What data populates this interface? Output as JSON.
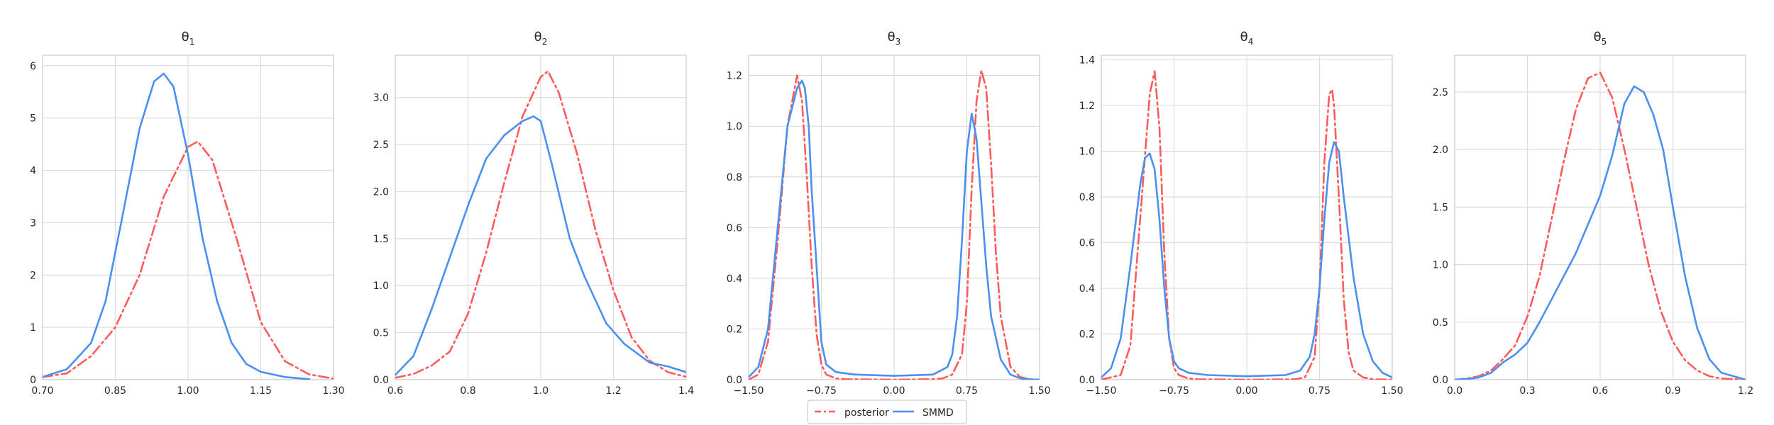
{
  "legend": {
    "placement": "bottom-center",
    "entries": [
      {
        "name": "posterior",
        "color": "#ff5b5b",
        "style": "dashdot"
      },
      {
        "name": "SMMD",
        "color": "#4a90f0",
        "style": "solid"
      }
    ]
  },
  "chart_data": [
    {
      "type": "line",
      "title": "θ1",
      "title_base": "θ",
      "title_sub": "1",
      "xlim": [
        0.7,
        1.3
      ],
      "ylim": [
        0,
        6.2
      ],
      "xticks": [
        0.7,
        0.85,
        1.0,
        1.15,
        1.3
      ],
      "xtick_labels": [
        "0.70",
        "0.85",
        "1.00",
        "1.15",
        "1.30"
      ],
      "yticks": [
        0,
        1,
        2,
        3,
        4,
        5,
        6
      ],
      "ytick_labels": [
        "0",
        "1",
        "2",
        "3",
        "4",
        "5",
        "6"
      ],
      "grid": true,
      "series": [
        {
          "name": "posterior",
          "color": "#ff5b5b",
          "dash": "dashdot",
          "x": [
            0.7,
            0.75,
            0.8,
            0.85,
            0.9,
            0.95,
            1.0,
            1.02,
            1.05,
            1.1,
            1.15,
            1.2,
            1.25,
            1.3
          ],
          "y": [
            0.05,
            0.12,
            0.45,
            1.0,
            2.0,
            3.5,
            4.45,
            4.55,
            4.2,
            2.7,
            1.1,
            0.35,
            0.1,
            0.02
          ]
        },
        {
          "name": "SMMD",
          "color": "#4a90f0",
          "dash": "solid",
          "x": [
            0.7,
            0.75,
            0.8,
            0.83,
            0.86,
            0.9,
            0.93,
            0.95,
            0.97,
            1.0,
            1.03,
            1.06,
            1.09,
            1.12,
            1.15,
            1.2,
            1.25
          ],
          "y": [
            0.05,
            0.2,
            0.7,
            1.5,
            2.9,
            4.8,
            5.7,
            5.85,
            5.6,
            4.3,
            2.7,
            1.5,
            0.7,
            0.3,
            0.15,
            0.05,
            0.01
          ]
        }
      ]
    },
    {
      "type": "line",
      "title": "θ2",
      "title_base": "θ",
      "title_sub": "2",
      "xlim": [
        0.6,
        1.4
      ],
      "ylim": [
        0,
        3.45
      ],
      "xticks": [
        0.6,
        0.8,
        1.0,
        1.2,
        1.4
      ],
      "xtick_labels": [
        "0.6",
        "0.8",
        "1.0",
        "1.2",
        "1.4"
      ],
      "yticks": [
        0,
        0.5,
        1.0,
        1.5,
        2.0,
        2.5,
        3.0
      ],
      "ytick_labels": [
        "0.0",
        "0.5",
        "1.0",
        "1.5",
        "2.0",
        "2.5",
        "3.0"
      ],
      "grid": true,
      "series": [
        {
          "name": "posterior",
          "color": "#ff5b5b",
          "dash": "dashdot",
          "x": [
            0.6,
            0.65,
            0.7,
            0.75,
            0.8,
            0.85,
            0.9,
            0.95,
            1.0,
            1.02,
            1.05,
            1.1,
            1.15,
            1.2,
            1.25,
            1.3,
            1.35,
            1.4
          ],
          "y": [
            0.02,
            0.06,
            0.15,
            0.3,
            0.7,
            1.35,
            2.1,
            2.8,
            3.22,
            3.28,
            3.05,
            2.4,
            1.6,
            0.95,
            0.45,
            0.2,
            0.08,
            0.03
          ]
        },
        {
          "name": "SMMD",
          "color": "#4a90f0",
          "dash": "solid",
          "x": [
            0.6,
            0.65,
            0.7,
            0.75,
            0.8,
            0.85,
            0.9,
            0.95,
            0.98,
            1.0,
            1.03,
            1.08,
            1.12,
            1.18,
            1.23,
            1.3,
            1.35,
            1.4
          ],
          "y": [
            0.05,
            0.25,
            0.75,
            1.3,
            1.85,
            2.35,
            2.6,
            2.75,
            2.8,
            2.75,
            2.3,
            1.5,
            1.1,
            0.6,
            0.38,
            0.18,
            0.14,
            0.08
          ]
        }
      ]
    },
    {
      "type": "line",
      "title": "θ3",
      "title_base": "θ",
      "title_sub": "3",
      "xlim": [
        -1.5,
        1.5
      ],
      "ylim": [
        0,
        1.28
      ],
      "xticks": [
        -1.5,
        -0.75,
        0.0,
        0.75,
        1.5
      ],
      "xtick_labels": [
        "−1.50",
        "−0.75",
        "0.00",
        "0.75",
        "1.50"
      ],
      "yticks": [
        0,
        0.2,
        0.4,
        0.6,
        0.8,
        1.0,
        1.2
      ],
      "ytick_labels": [
        "0.0",
        "0.2",
        "0.4",
        "0.6",
        "0.8",
        "1.0",
        "1.2"
      ],
      "grid": true,
      "series": [
        {
          "name": "posterior",
          "color": "#ff5b5b",
          "dash": "dashdot",
          "x": [
            -1.5,
            -1.4,
            -1.3,
            -1.2,
            -1.1,
            -1.0,
            -0.95,
            -0.9,
            -0.85,
            -0.8,
            -0.75,
            -0.7,
            -0.6,
            -0.5,
            0.0,
            0.4,
            0.5,
            0.6,
            0.7,
            0.75,
            0.8,
            0.85,
            0.9,
            0.95,
            1.0,
            1.05,
            1.1,
            1.2,
            1.3,
            1.4,
            1.5
          ],
          "y": [
            0.0,
            0.02,
            0.15,
            0.55,
            1.0,
            1.2,
            1.1,
            0.8,
            0.45,
            0.18,
            0.06,
            0.02,
            0.005,
            0.002,
            0.0,
            0.002,
            0.005,
            0.02,
            0.1,
            0.3,
            0.75,
            1.1,
            1.22,
            1.15,
            0.85,
            0.5,
            0.25,
            0.05,
            0.01,
            0.002,
            0.0
          ]
        },
        {
          "name": "SMMD",
          "color": "#4a90f0",
          "dash": "solid",
          "x": [
            -1.5,
            -1.4,
            -1.3,
            -1.2,
            -1.1,
            -1.0,
            -0.95,
            -0.92,
            -0.88,
            -0.85,
            -0.8,
            -0.75,
            -0.7,
            -0.6,
            -0.4,
            0.0,
            0.4,
            0.55,
            0.6,
            0.65,
            0.7,
            0.75,
            0.8,
            0.85,
            0.9,
            0.95,
            1.0,
            1.1,
            1.2,
            1.3,
            1.4,
            1.5
          ],
          "y": [
            0.01,
            0.05,
            0.2,
            0.6,
            1.0,
            1.15,
            1.18,
            1.15,
            1.0,
            0.75,
            0.45,
            0.15,
            0.06,
            0.03,
            0.02,
            0.015,
            0.02,
            0.05,
            0.1,
            0.25,
            0.55,
            0.9,
            1.05,
            0.95,
            0.7,
            0.45,
            0.25,
            0.08,
            0.02,
            0.005,
            0.001,
            0.0
          ]
        }
      ]
    },
    {
      "type": "line",
      "title": "θ4",
      "title_base": "θ",
      "title_sub": "4",
      "xlim": [
        -1.5,
        1.5
      ],
      "ylim": [
        0,
        1.42
      ],
      "xticks": [
        -1.5,
        -0.75,
        0.0,
        0.75,
        1.5
      ],
      "xtick_labels": [
        "−1.50",
        "−0.75",
        "0.00",
        "0.75",
        "1.50"
      ],
      "yticks": [
        0,
        0.2,
        0.4,
        0.6,
        0.8,
        1.0,
        1.2,
        1.4
      ],
      "ytick_labels": [
        "0.0",
        "0.2",
        "0.4",
        "0.6",
        "0.8",
        "1.0",
        "1.2",
        "1.4"
      ],
      "grid": true,
      "series": [
        {
          "name": "posterior",
          "color": "#ff5b5b",
          "dash": "dashdot",
          "x": [
            -1.5,
            -1.3,
            -1.2,
            -1.1,
            -1.0,
            -0.95,
            -0.9,
            -0.85,
            -0.8,
            -0.75,
            -0.7,
            -0.6,
            -0.5,
            0.0,
            0.5,
            0.6,
            0.7,
            0.75,
            0.8,
            0.85,
            0.88,
            0.9,
            0.95,
            1.0,
            1.05,
            1.1,
            1.2,
            1.3,
            1.5
          ],
          "y": [
            0.0,
            0.02,
            0.15,
            0.7,
            1.25,
            1.35,
            1.1,
            0.55,
            0.18,
            0.05,
            0.02,
            0.005,
            0.002,
            0.0,
            0.002,
            0.01,
            0.1,
            0.4,
            0.95,
            1.25,
            1.27,
            1.2,
            0.8,
            0.35,
            0.12,
            0.04,
            0.01,
            0.002,
            0.0
          ]
        },
        {
          "name": "SMMD",
          "color": "#4a90f0",
          "dash": "solid",
          "x": [
            -1.5,
            -1.4,
            -1.3,
            -1.2,
            -1.1,
            -1.05,
            -1.0,
            -0.95,
            -0.9,
            -0.85,
            -0.8,
            -0.75,
            -0.7,
            -0.6,
            -0.4,
            0.0,
            0.4,
            0.55,
            0.65,
            0.7,
            0.75,
            0.8,
            0.85,
            0.9,
            0.95,
            1.0,
            1.1,
            1.2,
            1.3,
            1.4,
            1.5
          ],
          "y": [
            0.01,
            0.05,
            0.18,
            0.5,
            0.85,
            0.97,
            0.99,
            0.92,
            0.7,
            0.4,
            0.18,
            0.08,
            0.05,
            0.03,
            0.02,
            0.015,
            0.02,
            0.04,
            0.1,
            0.2,
            0.4,
            0.7,
            0.95,
            1.04,
            1.0,
            0.8,
            0.45,
            0.2,
            0.08,
            0.03,
            0.01
          ]
        }
      ]
    },
    {
      "type": "line",
      "title": "θ5",
      "title_base": "θ",
      "title_sub": "5",
      "xlim": [
        0.0,
        1.2
      ],
      "ylim": [
        0,
        2.82
      ],
      "xticks": [
        0.0,
        0.3,
        0.6,
        0.9,
        1.2
      ],
      "xtick_labels": [
        "0.0",
        "0.3",
        "0.6",
        "0.9",
        "1.2"
      ],
      "yticks": [
        0,
        0.5,
        1.0,
        1.5,
        2.0,
        2.5
      ],
      "ytick_labels": [
        "0.0",
        "0.5",
        "1.0",
        "1.5",
        "2.0",
        "2.5"
      ],
      "grid": true,
      "series": [
        {
          "name": "posterior",
          "color": "#ff5b5b",
          "dash": "dashdot",
          "x": [
            0.0,
            0.05,
            0.1,
            0.15,
            0.2,
            0.25,
            0.3,
            0.35,
            0.4,
            0.45,
            0.5,
            0.55,
            0.6,
            0.65,
            0.7,
            0.75,
            0.8,
            0.85,
            0.9,
            0.95,
            1.0,
            1.05,
            1.1,
            1.2
          ],
          "y": [
            0.0,
            0.01,
            0.03,
            0.08,
            0.18,
            0.3,
            0.55,
            0.9,
            1.4,
            1.9,
            2.35,
            2.62,
            2.67,
            2.45,
            2.0,
            1.5,
            1.0,
            0.6,
            0.33,
            0.17,
            0.08,
            0.03,
            0.01,
            0.0
          ]
        },
        {
          "name": "SMMD",
          "color": "#4a90f0",
          "dash": "solid",
          "x": [
            0.0,
            0.05,
            0.1,
            0.15,
            0.2,
            0.25,
            0.3,
            0.35,
            0.4,
            0.45,
            0.5,
            0.55,
            0.6,
            0.65,
            0.7,
            0.74,
            0.78,
            0.82,
            0.86,
            0.9,
            0.95,
            1.0,
            1.05,
            1.1,
            1.2
          ],
          "y": [
            0.0,
            0.005,
            0.02,
            0.06,
            0.15,
            0.22,
            0.32,
            0.5,
            0.7,
            0.9,
            1.1,
            1.35,
            1.6,
            1.95,
            2.4,
            2.55,
            2.5,
            2.3,
            2.0,
            1.5,
            0.9,
            0.45,
            0.18,
            0.06,
            0.0
          ]
        }
      ]
    }
  ]
}
